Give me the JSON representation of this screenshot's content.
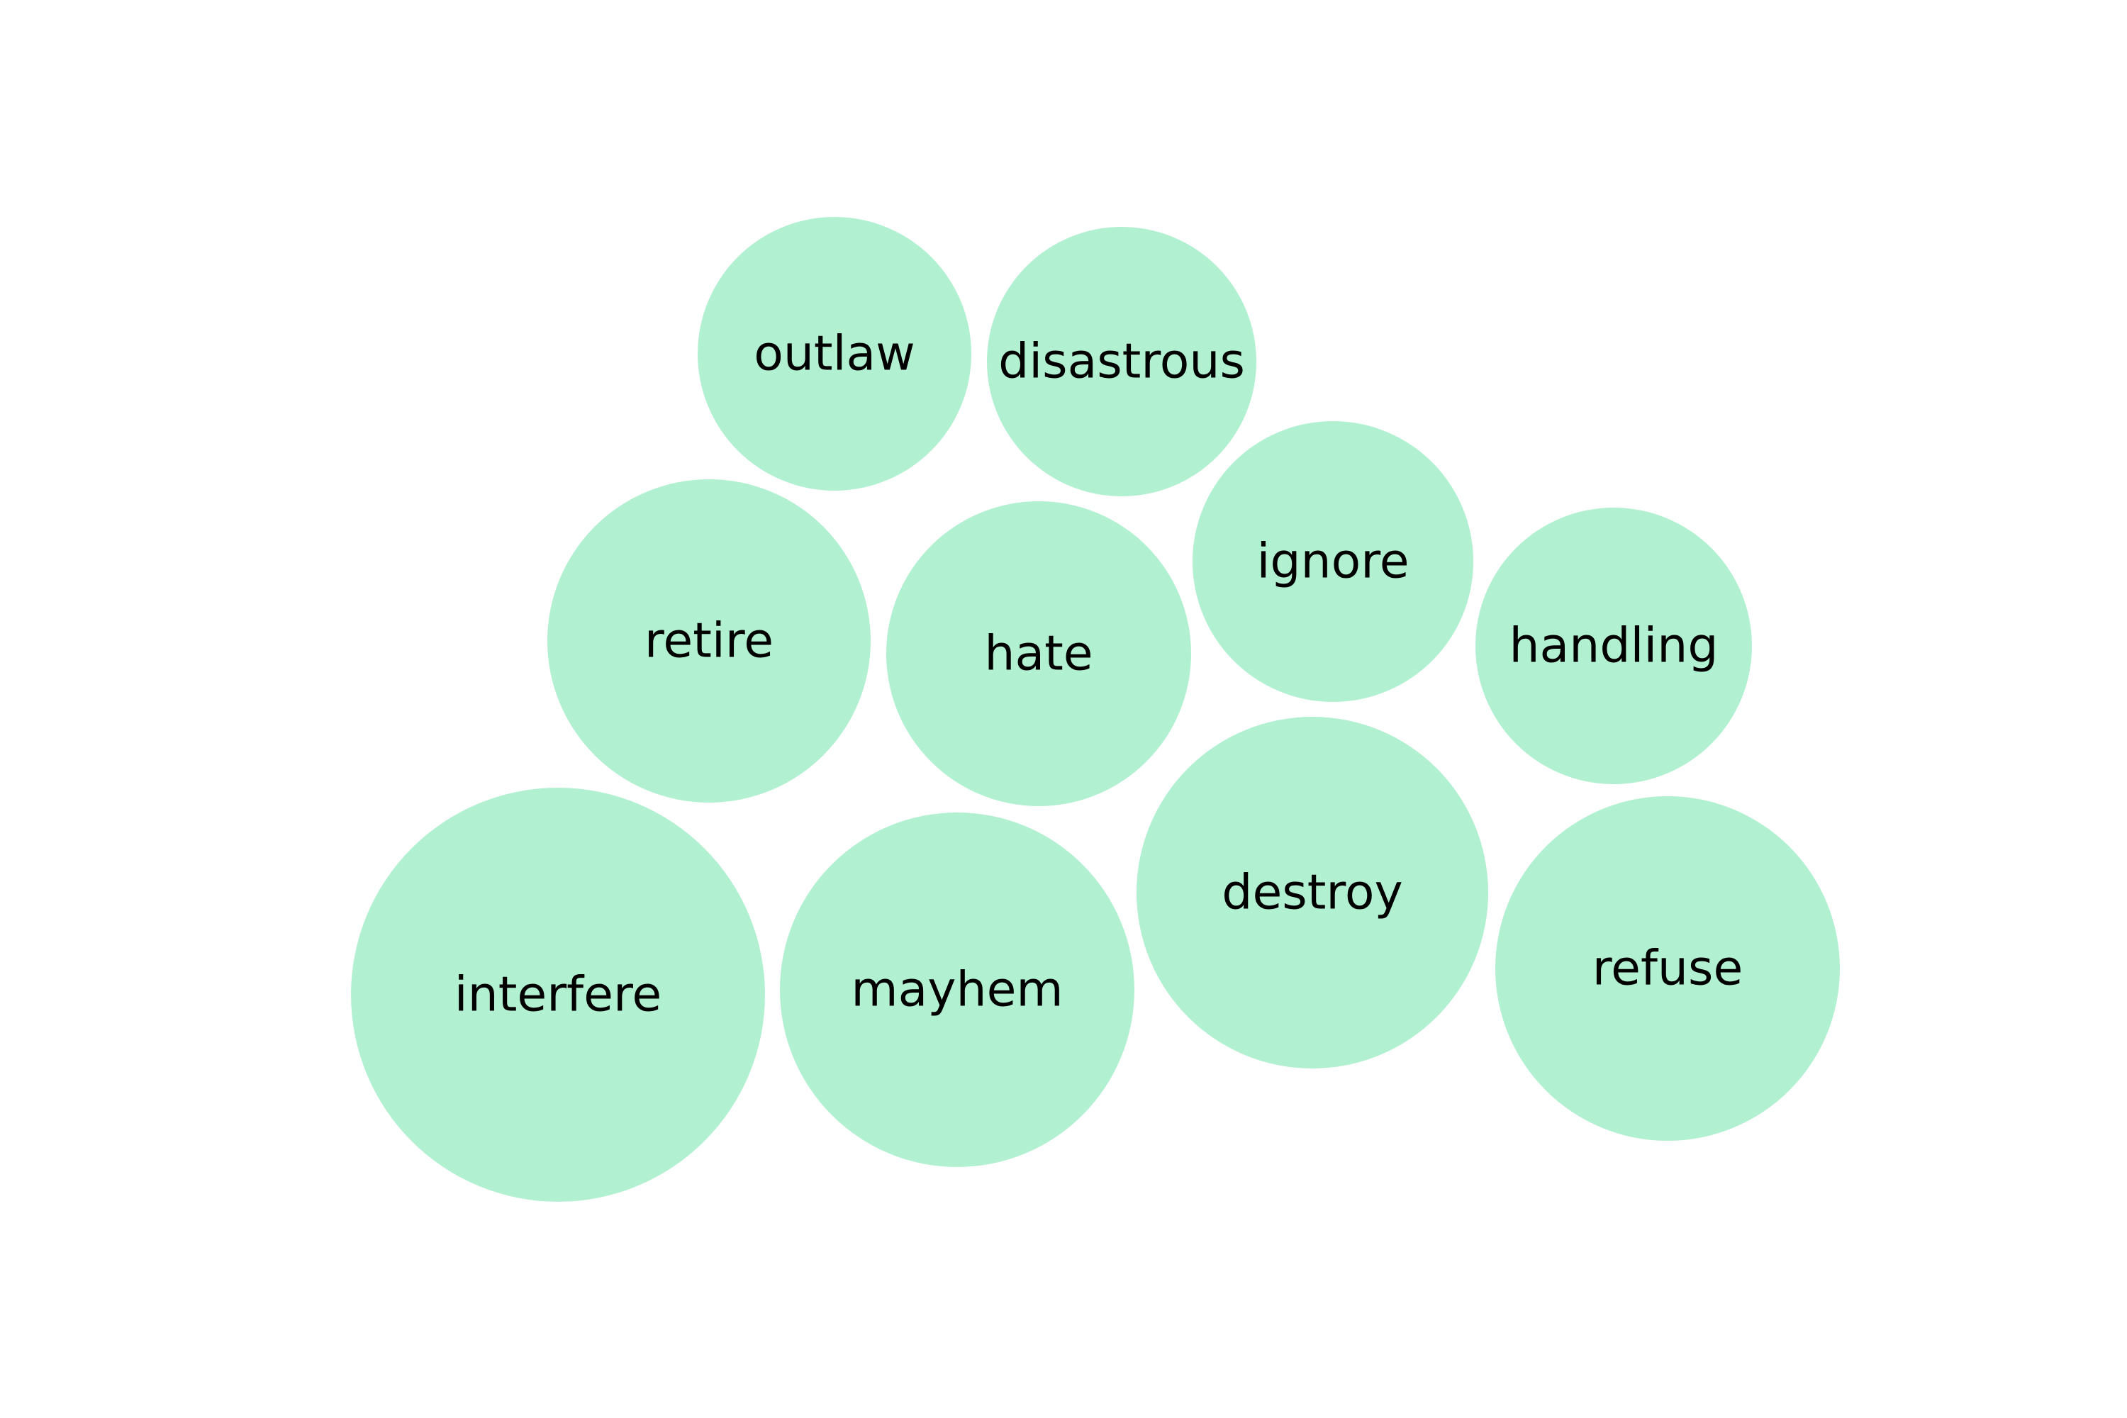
{
  "chart_data": {
    "type": "bubble",
    "bubble_color": "#b1f0d0",
    "label_color": "#000000",
    "bubbles": [
      {
        "label": "outlaw"
      },
      {
        "label": "disastrous"
      },
      {
        "label": "retire"
      },
      {
        "label": "hate"
      },
      {
        "label": "ignore"
      },
      {
        "label": "handling"
      },
      {
        "label": "interfere"
      },
      {
        "label": "mayhem"
      },
      {
        "label": "destroy"
      },
      {
        "label": "refuse"
      }
    ]
  }
}
